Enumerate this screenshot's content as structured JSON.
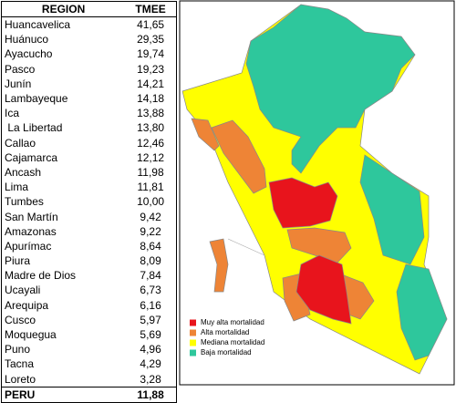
{
  "table": {
    "header": [
      "REGION",
      "TMEE"
    ],
    "rows": [
      [
        "Huancavelica",
        "41,65"
      ],
      [
        "Huánuco",
        "29,35"
      ],
      [
        "Ayacucho",
        "19,74"
      ],
      [
        "Pasco",
        "19,23"
      ],
      [
        "Junín",
        "14,21"
      ],
      [
        "Lambayeque",
        "14,18"
      ],
      [
        "Ica",
        "13,88"
      ],
      [
        " La Libertad",
        "13,80"
      ],
      [
        "Callao",
        "12,46"
      ],
      [
        "Cajamarca",
        "12,12"
      ],
      [
        "Ancash",
        "11,98"
      ],
      [
        "Lima",
        "11,81"
      ],
      [
        "Tumbes",
        "10,00"
      ],
      [
        "San Martín",
        "9,42"
      ],
      [
        "Amazonas",
        "9,22"
      ],
      [
        "Apurímac",
        "8,64"
      ],
      [
        "Piura",
        "8,09"
      ],
      [
        "Madre de Dios",
        "7,84"
      ],
      [
        "Ucayali",
        "6,73"
      ],
      [
        "Arequipa",
        "6,16"
      ],
      [
        "Cusco",
        "5,97"
      ],
      [
        "Moquegua",
        "5,69"
      ],
      [
        "Puno",
        "4,96"
      ],
      [
        "Tacna",
        "4,29"
      ],
      [
        "Loreto",
        "3,28"
      ]
    ],
    "total": [
      "PERU",
      "11,88"
    ]
  },
  "legend": [
    {
      "label": "Muy alta mortalidad",
      "color": "#e8141c"
    },
    {
      "label": "Alta mortalidad",
      "color": "#ee8436"
    },
    {
      "label": "Mediana mortalidad",
      "color": "#ffff00"
    },
    {
      "label": "Baja mortalidad",
      "color": "#2ec79c"
    }
  ]
}
